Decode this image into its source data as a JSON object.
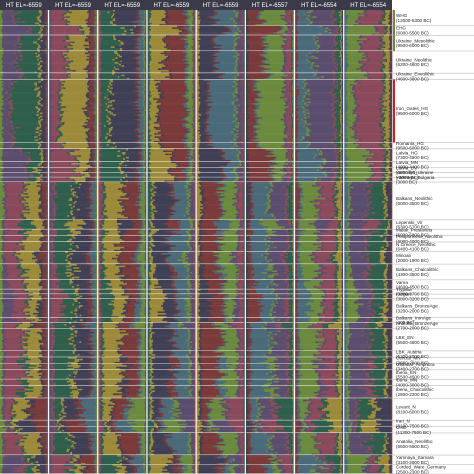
{
  "chart_data": {
    "type": "stacked-bar-panels",
    "description_orientation": "horizontal stacked ancestry bars per individual, one column panel per run",
    "panels": [
      {
        "title": "HT EL=-6559"
      },
      {
        "title": "HT EL=-6559"
      },
      {
        "title": "HT EL=-6559"
      },
      {
        "title": "HT EL=-6559"
      },
      {
        "title": "HT EL=-6559"
      },
      {
        "title": "HT EL=-6557"
      },
      {
        "title": "HT EL=-6554"
      },
      {
        "title": "HT EL=-6554"
      }
    ],
    "components": [
      {
        "name": "c1",
        "color": "#6b8a3e"
      },
      {
        "name": "c2",
        "color": "#5b4d6e"
      },
      {
        "name": "c3",
        "color": "#8a4a5c"
      },
      {
        "name": "c4",
        "color": "#2f5e4c"
      },
      {
        "name": "c5",
        "color": "#9c8a3a"
      },
      {
        "name": "c6",
        "color": "#3f3f55"
      },
      {
        "name": "c7",
        "color": "#7a3a3a"
      },
      {
        "name": "c8",
        "color": "#4a6a7a"
      }
    ],
    "groups": [
      {
        "label": "WHG (12000-5300 BC)",
        "size": 10,
        "mix": [
          0.05,
          0.25,
          0.05,
          0.45,
          0.05,
          0.1,
          0.03,
          0.02
        ],
        "flag": "#6b8a3e"
      },
      {
        "label": "EHG (6000-5500 BC)",
        "size": 6,
        "mix": [
          0.05,
          0.6,
          0.05,
          0.15,
          0.05,
          0.05,
          0.03,
          0.02
        ],
        "flag": "#6b8a3e"
      },
      {
        "label": "Ukraine_Mesolithic (9500-6000 BC)",
        "size": 10,
        "mix": [
          0.05,
          0.35,
          0.05,
          0.35,
          0.05,
          0.1,
          0.03,
          0.02
        ],
        "flag": "#6b8a3e"
      },
      {
        "label": "Ukraine_Neolithic (6200-4600 BC)",
        "size": 14,
        "mix": [
          0.05,
          0.3,
          0.05,
          0.4,
          0.05,
          0.1,
          0.03,
          0.02
        ],
        "flag": ""
      },
      {
        "label": "Ukraine_Eneolithic (4600-3800 BC)",
        "size": 4,
        "mix": [
          0.05,
          0.4,
          0.05,
          0.3,
          0.05,
          0.1,
          0.03,
          0.02
        ],
        "flag": ""
      },
      {
        "label": "Iron_Gates_HG (9500-6000 BC)",
        "size": 40,
        "mix": [
          0.05,
          0.15,
          0.05,
          0.55,
          0.05,
          0.1,
          0.03,
          0.02
        ],
        "flag": "#cc2222"
      },
      {
        "label": "Romania_HG (9500-6000 BC)",
        "size": 4,
        "mix": [
          0.05,
          0.2,
          0.05,
          0.5,
          0.05,
          0.1,
          0.03,
          0.02
        ],
        "flag": ""
      },
      {
        "label": "Latvia_HG (7300-4800 BC)",
        "size": 8,
        "mix": [
          0.05,
          0.45,
          0.05,
          0.3,
          0.05,
          0.05,
          0.03,
          0.02
        ],
        "flag": ""
      },
      {
        "label": "Latvia_MN (4000-4400 BC)",
        "size": 4,
        "mix": [
          0.05,
          0.5,
          0.05,
          0.25,
          0.05,
          0.05,
          0.03,
          0.02
        ],
        "flag": ""
      },
      {
        "label": "Latvia_LN (3000 BC)",
        "size": 3,
        "mix": [
          0.05,
          0.45,
          0.05,
          0.2,
          0.1,
          0.1,
          0.03,
          0.02
        ],
        "flag": ""
      },
      {
        "label": "Yamnaya_Ukraine (-3000 BC)",
        "size": 3,
        "mix": [
          0.05,
          0.5,
          0.05,
          0.2,
          0.05,
          0.1,
          0.03,
          0.02
        ],
        "flag": ""
      },
      {
        "label": "Yamnaya_Bulgaria (3000 BC)",
        "size": 3,
        "mix": [
          0.05,
          0.45,
          0.05,
          0.2,
          0.1,
          0.1,
          0.03,
          0.02
        ],
        "flag": ""
      },
      {
        "label": "Balkans_Neolithic (6000-3500 BC)",
        "size": 24,
        "mix": [
          0.08,
          0.05,
          0.35,
          0.05,
          0.3,
          0.05,
          0.1,
          0.02
        ],
        "flag": ""
      },
      {
        "label": "Lepenski_Vir (6300-5700 BC)",
        "size": 6,
        "mix": [
          0.05,
          0.05,
          0.3,
          0.3,
          0.2,
          0.05,
          0.03,
          0.02
        ],
        "flag": ""
      },
      {
        "label": "Malak_Preslavets (6000-5800 BC)",
        "size": 4,
        "mix": [
          0.05,
          0.1,
          0.3,
          0.15,
          0.25,
          0.05,
          0.08,
          0.02
        ],
        "flag": ""
      },
      {
        "label": "Peloponnese_Neolithic (6000-4000 BC)",
        "size": 4,
        "mix": [
          0.05,
          0.05,
          0.35,
          0.05,
          0.35,
          0.05,
          0.08,
          0.02
        ],
        "flag": ""
      },
      {
        "label": "N.Greece_Neolithic (6400-4100 BC)",
        "size": 6,
        "mix": [
          0.05,
          0.05,
          0.35,
          0.05,
          0.35,
          0.05,
          0.08,
          0.02
        ],
        "flag": ""
      },
      {
        "label": "Minoan (2000-1900 BC)",
        "size": 8,
        "mix": [
          0.05,
          0.05,
          0.3,
          0.05,
          0.3,
          0.1,
          0.13,
          0.02
        ],
        "flag": ""
      },
      {
        "label": "Balkans_Chalcolithic (4300-3500 BC)",
        "size": 10,
        "mix": [
          0.05,
          0.1,
          0.3,
          0.1,
          0.3,
          0.05,
          0.08,
          0.02
        ],
        "flag": ""
      },
      {
        "label": "Varna (4600-4500 BC)",
        "size": 6,
        "mix": [
          0.05,
          0.15,
          0.3,
          0.05,
          0.3,
          0.05,
          0.08,
          0.02
        ],
        "flag": ""
      },
      {
        "label": "Trypillia (3800-3700 BC)",
        "size": 3,
        "mix": [
          0.05,
          0.2,
          0.3,
          0.05,
          0.25,
          0.05,
          0.08,
          0.02
        ],
        "flag": ""
      },
      {
        "label": "Kurgan (3800-3200 BC)",
        "size": 3,
        "mix": [
          0.05,
          0.3,
          0.25,
          0.05,
          0.2,
          0.05,
          0.08,
          0.02
        ],
        "flag": ""
      },
      {
        "label": "Balkans_BronzeAge (3200-2000 BC)",
        "size": 12,
        "mix": [
          0.05,
          0.25,
          0.25,
          0.05,
          0.2,
          0.1,
          0.08,
          0.02
        ],
        "flag": ""
      },
      {
        "label": "Balkans_IronAge (400 BC)",
        "size": 3,
        "mix": [
          0.05,
          0.25,
          0.25,
          0.05,
          0.2,
          0.1,
          0.08,
          0.02
        ],
        "flag": ""
      },
      {
        "label": "Anatolia_BronzeAge (2700-2000 BC)",
        "size": 4,
        "mix": [
          0.05,
          0.05,
          0.3,
          0.05,
          0.2,
          0.1,
          0.23,
          0.02
        ],
        "flag": ""
      },
      {
        "label": "LBK_EN (5500-4800 BC)",
        "size": 14,
        "mix": [
          0.05,
          0.05,
          0.4,
          0.05,
          0.3,
          0.05,
          0.08,
          0.02
        ],
        "flag": ""
      },
      {
        "label": "LBK_Austria (5300-5000 BC)",
        "size": 4,
        "mix": [
          0.05,
          0.05,
          0.4,
          0.05,
          0.3,
          0.05,
          0.08,
          0.02
        ],
        "flag": ""
      },
      {
        "label": "Central_MN (3600-2800 BC)",
        "size": 4,
        "mix": [
          0.05,
          0.05,
          0.35,
          0.15,
          0.25,
          0.05,
          0.08,
          0.02
        ],
        "flag": ""
      },
      {
        "label": "Globular_Amphora (3400-2700 BC)",
        "size": 4,
        "mix": [
          0.05,
          0.05,
          0.35,
          0.2,
          0.2,
          0.05,
          0.08,
          0.02
        ],
        "flag": ""
      },
      {
        "label": "Iberia_EN (5500-4500 BC)",
        "size": 6,
        "mix": [
          0.05,
          0.05,
          0.4,
          0.05,
          0.3,
          0.05,
          0.08,
          0.02
        ],
        "flag": ""
      },
      {
        "label": "Iberia_MN (4000-3000 BC)",
        "size": 4,
        "mix": [
          0.05,
          0.05,
          0.35,
          0.15,
          0.25,
          0.05,
          0.08,
          0.02
        ],
        "flag": ""
      },
      {
        "label": "Iberia_Chalcolithic (2800-2200 BC)",
        "size": 8,
        "mix": [
          0.05,
          0.05,
          0.35,
          0.15,
          0.25,
          0.05,
          0.08,
          0.02
        ],
        "flag": ""
      },
      {
        "label": "Levant_N (8100-6000 BC)",
        "size": 14,
        "mix": [
          0.05,
          0.05,
          0.15,
          0.05,
          0.25,
          0.1,
          0.33,
          0.02
        ],
        "flag": ""
      },
      {
        "label": "Iran_N (8100-7500 BC)",
        "size": 4,
        "mix": [
          0.1,
          0.05,
          0.05,
          0.05,
          0.1,
          0.35,
          0.28,
          0.02
        ],
        "flag": ""
      },
      {
        "label": "CHG (11300-7500 BC)",
        "size": 4,
        "mix": [
          0.1,
          0.05,
          0.05,
          0.05,
          0.1,
          0.4,
          0.23,
          0.02
        ],
        "flag": ""
      },
      {
        "label": "Anatolia_Neolithic (6500-5500 BC)",
        "size": 14,
        "mix": [
          0.05,
          0.05,
          0.35,
          0.05,
          0.35,
          0.05,
          0.08,
          0.02
        ],
        "flag": ""
      },
      {
        "label": "Yamnaya_Samara (3100-2800 BC)",
        "size": 6,
        "mix": [
          0.05,
          0.45,
          0.05,
          0.1,
          0.05,
          0.25,
          0.03,
          0.02
        ],
        "flag": ""
      },
      {
        "label": "Corded_Ware_Germany (2500-2300 BC)",
        "size": 6,
        "mix": [
          0.05,
          0.35,
          0.15,
          0.15,
          0.1,
          0.15,
          0.03,
          0.02
        ],
        "flag": ""
      }
    ]
  }
}
